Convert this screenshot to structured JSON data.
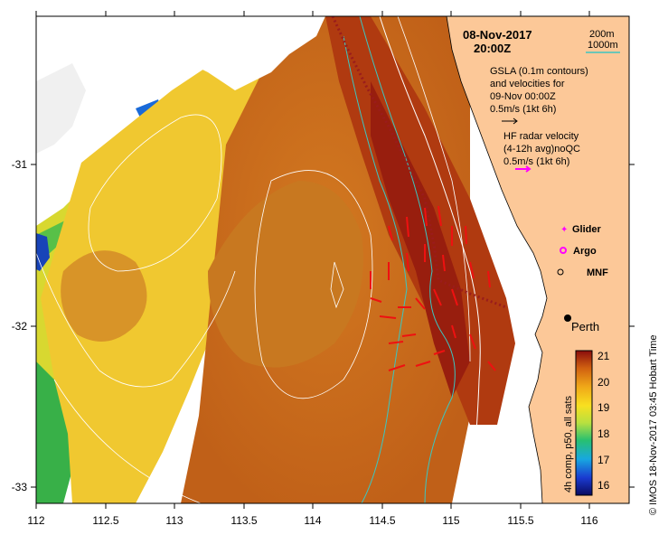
{
  "title": {
    "date": "08-Nov-2017",
    "time": "20:00Z"
  },
  "depth_legend": {
    "shallow": "200m",
    "deep": "1000m",
    "deep_color": "#3cc6c0",
    "shallow_color": "#ffffff"
  },
  "gsla": {
    "line1": "GSLA (0.1m contours)",
    "line2": "and velocities for",
    "line3": "09-Nov 00:00Z",
    "line4": "0.5m/s (1kt 6h)"
  },
  "hf_radar": {
    "line1": "HF radar velocity",
    "line2": "(4-12h avg)noQC",
    "line3": "0.5m/s (1kt 6h)",
    "arrow_color": "#ff00ff"
  },
  "markers": {
    "glider": "Glider",
    "argo": "Argo",
    "mnf": "MNF",
    "glider_color": "#ff00ff",
    "argo_color": "#ff00ff"
  },
  "place": "Perth",
  "x_axis": {
    "ticks": [
      "112",
      "112.5",
      "113",
      "113.5",
      "114",
      "114.5",
      "115",
      "115.5",
      "116"
    ]
  },
  "y_axis": {
    "ticks": [
      "-31",
      "-32",
      "-33"
    ]
  },
  "colorbar": {
    "ticks": [
      "21",
      "20",
      "19",
      "18",
      "17",
      "16"
    ],
    "label": "4h comp, p50, all sats"
  },
  "credit": "©  IMOS 18-Nov-2017 03:45 Hobart Time",
  "colors": {
    "land": "#fcc898",
    "sea_warm": "#c86010",
    "radar_vectors": "#ee1111",
    "glider_track": "#9a1c1c"
  }
}
